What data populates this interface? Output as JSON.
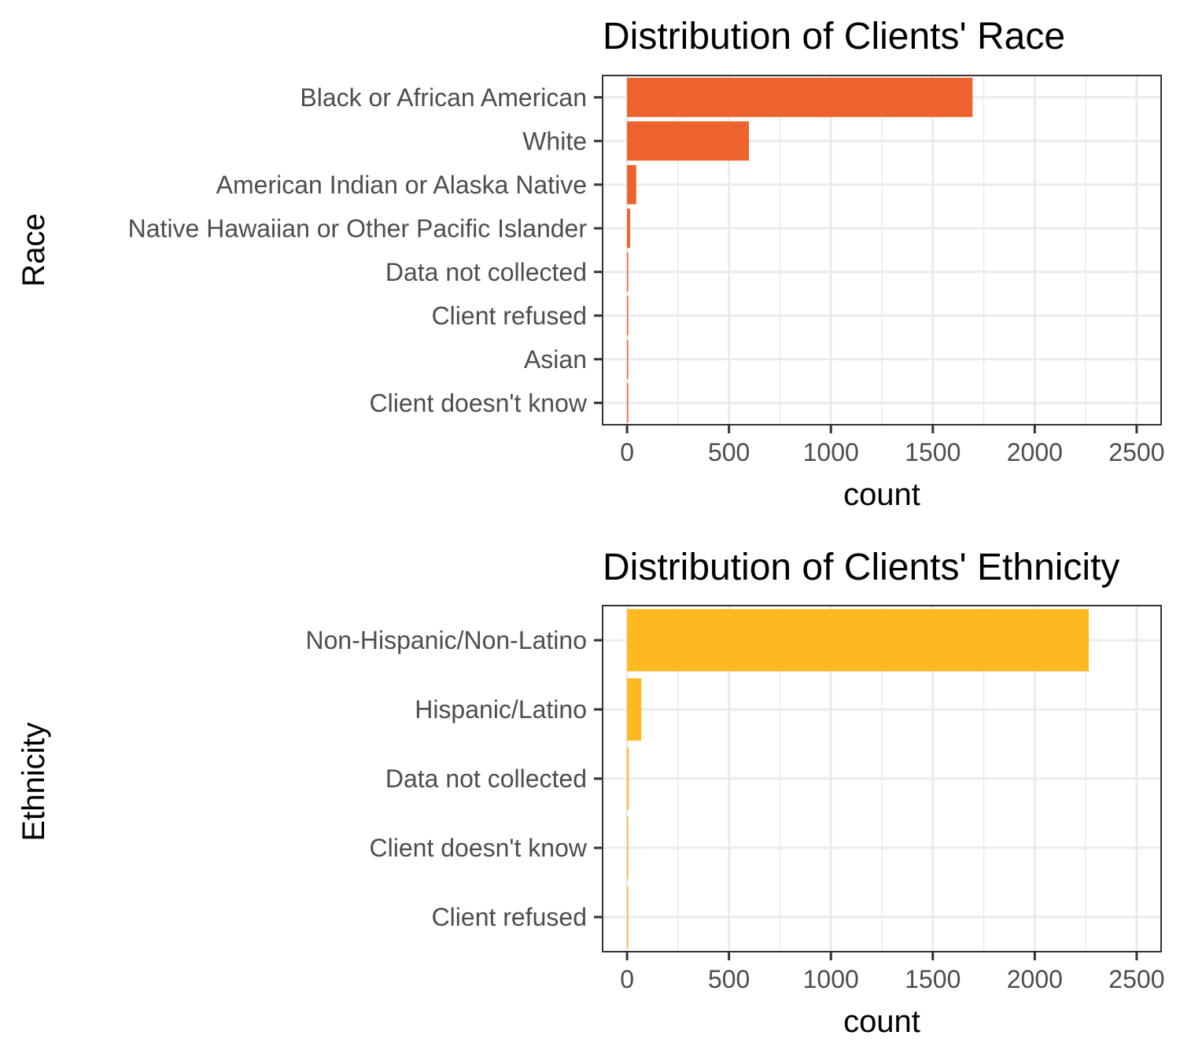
{
  "chart_data": [
    {
      "type": "bar",
      "orientation": "horizontal",
      "title": "Distribution of Clients' Race",
      "xlabel": "count",
      "ylabel": "Race",
      "categories": [
        "Black or African American",
        "White",
        "American Indian or Alaska Native",
        "Native Hawaiian or Other Pacific Islander",
        "Data not collected",
        "Client refused",
        "Asian",
        "Client doesn't know"
      ],
      "values": [
        1695,
        598,
        45,
        15,
        4,
        3,
        3,
        2
      ],
      "xlim": [
        -120,
        2620
      ],
      "xticks": [
        "0",
        "500",
        "1000",
        "1500",
        "2000",
        "2500"
      ],
      "grid": true,
      "color": "#ee632d"
    },
    {
      "type": "bar",
      "orientation": "horizontal",
      "title": "Distribution of Clients' Ethnicity",
      "xlabel": "count",
      "ylabel": "Ethnicity",
      "categories": [
        "Non-Hispanic/Non-Latino",
        "Hispanic/Latino",
        "Data not collected",
        "Client doesn't know",
        "Client refused"
      ],
      "values": [
        2265,
        70,
        8,
        6,
        5
      ],
      "xlim": [
        -120,
        2620
      ],
      "xticks": [
        "0",
        "500",
        "1000",
        "1500",
        "2000",
        "2500"
      ],
      "grid": true,
      "color": "#fdb922"
    }
  ]
}
